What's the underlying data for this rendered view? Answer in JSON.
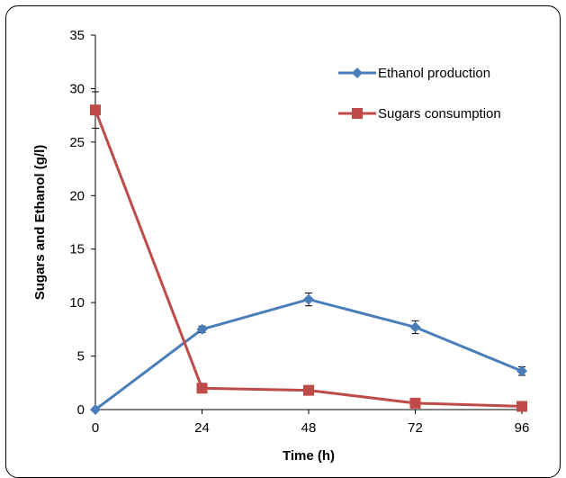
{
  "chart_data": {
    "type": "line",
    "xlabel": "Time (h)",
    "ylabel": "Sugars and Ethanol (g/l)",
    "x": [
      0,
      24,
      48,
      72,
      96
    ],
    "xticks": [
      "0",
      "24",
      "48",
      "72",
      "96"
    ],
    "yticks": [
      "0",
      "5",
      "10",
      "15",
      "20",
      "25",
      "30",
      "35"
    ],
    "ylim": [
      0,
      35
    ],
    "grid": false,
    "legend_position": "top-right",
    "series": [
      {
        "name": "Ethanol production",
        "color": "#4a7ebb",
        "marker": "diamond",
        "values": [
          0,
          7.5,
          10.3,
          7.7,
          3.6
        ],
        "errors": [
          0,
          0.3,
          0.6,
          0.6,
          0.4
        ]
      },
      {
        "name": "Sugars consumption",
        "color": "#be4b48",
        "marker": "square",
        "values": [
          28,
          2.0,
          1.8,
          0.6,
          0.3
        ],
        "errors": [
          1.7,
          0,
          0,
          0,
          0
        ]
      }
    ]
  }
}
